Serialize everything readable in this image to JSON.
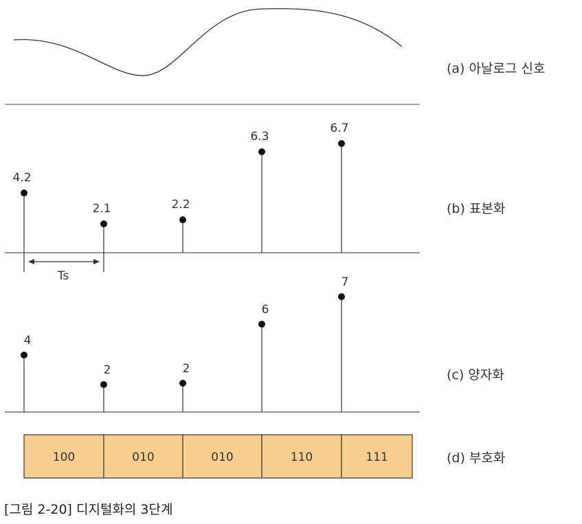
{
  "caption": "[그림 2-20] 디지털화의 3단계",
  "labels": {
    "analog": "(a) 아날로그 신호",
    "sampling": "(b) 표본화",
    "quantization": "(c) 양자화",
    "encoding": "(d) 부호화"
  },
  "ts_label": "Ts",
  "sampled_values": [
    "4.2",
    "2.1",
    "2.2",
    "6.3",
    "6.7"
  ],
  "quantized_values": [
    "4",
    "2",
    "2",
    "6",
    "7"
  ],
  "codes": [
    "100",
    "010",
    "010",
    "110",
    "111"
  ],
  "colors": {
    "code_fill": "#f9cf8f",
    "line": "#333333"
  }
}
